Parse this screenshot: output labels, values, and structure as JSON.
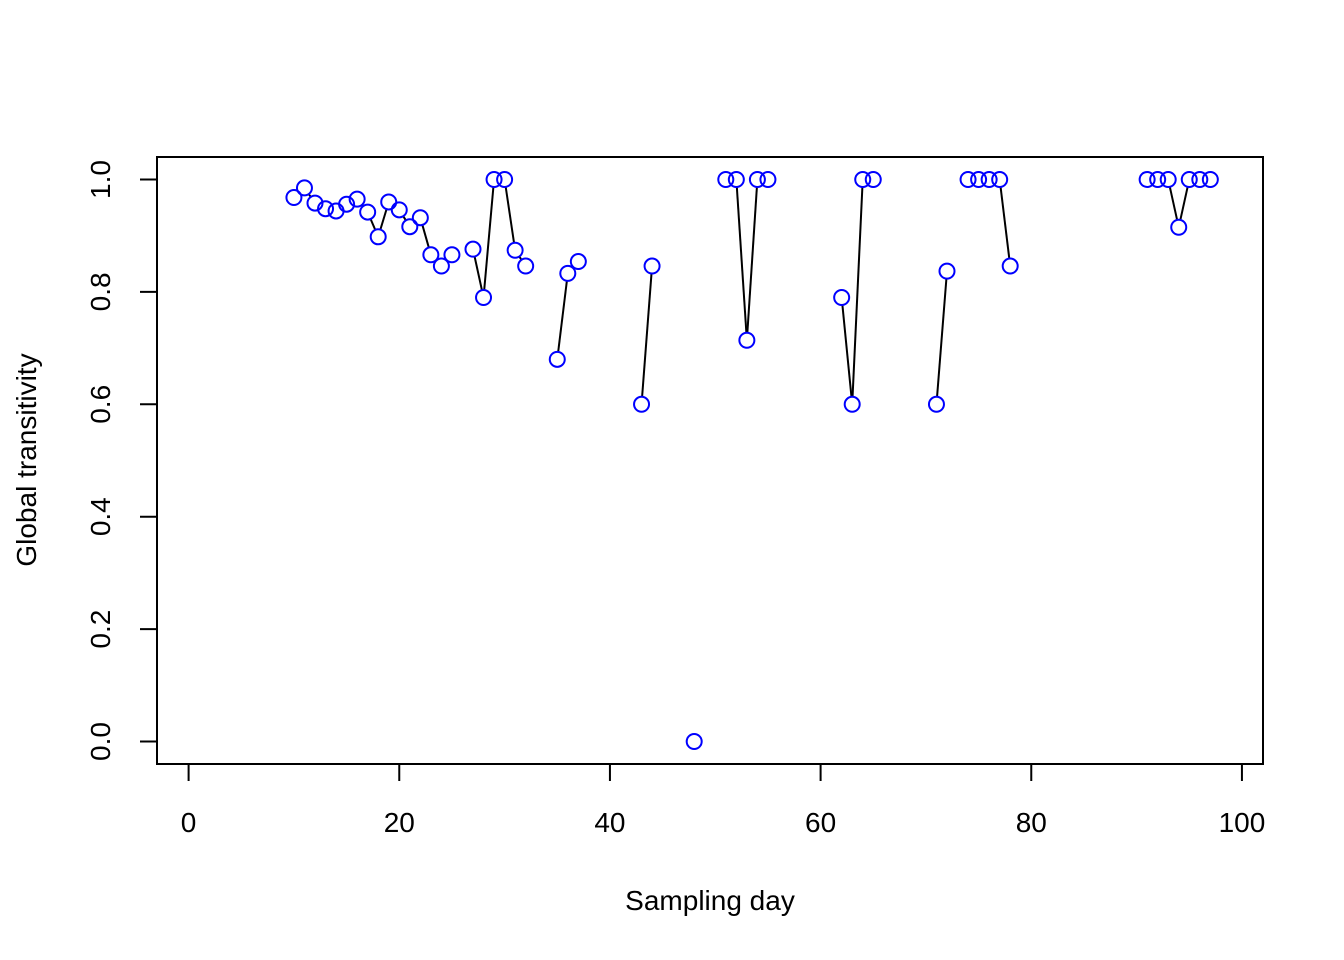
{
  "chart_data": {
    "type": "line",
    "title": "",
    "xlabel": "Sampling day",
    "ylabel": "Global transitivity",
    "xlim": [
      -3,
      102
    ],
    "ylim": [
      -0.04,
      1.04
    ],
    "xticks": [
      0,
      20,
      40,
      60,
      80,
      100
    ],
    "xtick_labels": [
      "0",
      "20",
      "40",
      "60",
      "80",
      "100"
    ],
    "yticks": [
      0.0,
      0.2,
      0.4,
      0.6,
      0.8,
      1.0
    ],
    "ytick_labels": [
      "0.0",
      "0.2",
      "0.4",
      "0.6",
      "0.8",
      "1.0"
    ],
    "grid": false,
    "point_color": "#0000ff",
    "line_color": "#000000",
    "x": [
      10,
      11,
      12,
      13,
      14,
      15,
      16,
      17,
      18,
      19,
      20,
      21,
      22,
      23,
      24,
      25,
      27,
      28,
      29,
      30,
      31,
      32,
      35,
      36,
      37,
      43,
      44,
      48,
      51,
      52,
      53,
      54,
      55,
      62,
      63,
      64,
      65,
      71,
      72,
      74,
      75,
      76,
      77,
      78,
      91,
      92,
      93,
      94,
      95,
      96,
      97
    ],
    "y": [
      0.968,
      0.985,
      0.958,
      0.948,
      0.944,
      0.956,
      0.965,
      0.942,
      0.898,
      0.96,
      0.946,
      0.916,
      0.932,
      0.866,
      0.846,
      0.866,
      0.876,
      0.79,
      1.0,
      1.0,
      0.874,
      0.846,
      0.68,
      0.833,
      0.854,
      0.6,
      0.846,
      0.0,
      1.0,
      1.0,
      0.714,
      1.0,
      1.0,
      0.79,
      0.6,
      1.0,
      1.0,
      0.6,
      0.837,
      1.0,
      1.0,
      1.0,
      1.0,
      0.846,
      1.0,
      1.0,
      1.0,
      0.915,
      1.0,
      1.0,
      1.0
    ]
  }
}
